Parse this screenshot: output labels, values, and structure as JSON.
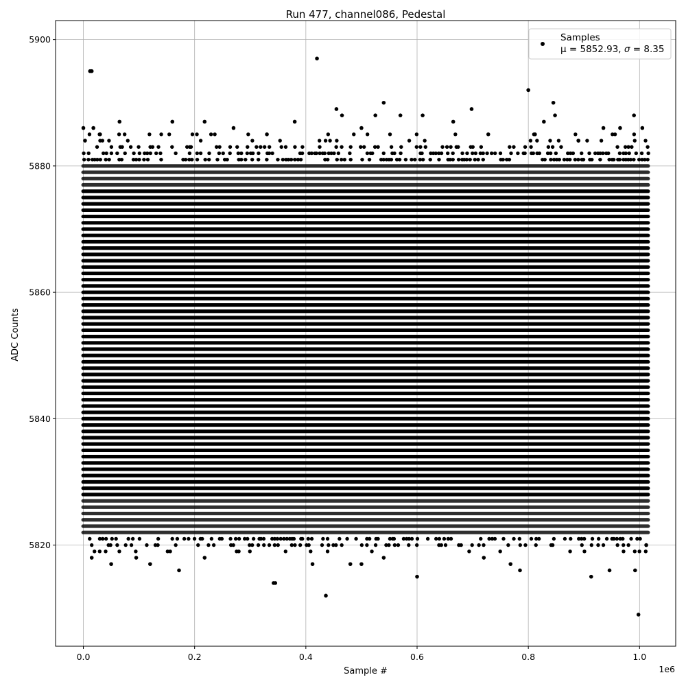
{
  "chart_data": {
    "type": "scatter",
    "title": "Run 477, channel086, Pedestal",
    "xlabel": "Sample #",
    "ylabel": "ADC Counts",
    "x_offset_label": "1e6",
    "xlim": [
      -50000,
      1065000
    ],
    "ylim": [
      5804,
      5903
    ],
    "x_ticks": [
      0,
      200000,
      400000,
      600000,
      800000,
      1000000
    ],
    "x_tick_labels": [
      "0.0",
      "0.2",
      "0.4",
      "0.6",
      "0.8",
      "1.0"
    ],
    "y_ticks": [
      5820,
      5840,
      5860,
      5880,
      5900
    ],
    "y_tick_labels": [
      "5820",
      "5840",
      "5860",
      "5880",
      "5900"
    ],
    "grid": true,
    "legend": {
      "placement": "top-right",
      "label": "Samples",
      "stats_prefix": "μ = 5852.93, ",
      "stats_suffix": " = 8.35",
      "sigma_symbol": "σ",
      "marker_color": "#000000"
    },
    "marker_color": "#000000",
    "dense_band": {
      "x_range": [
        0,
        1015000
      ],
      "y_range": [
        5822,
        5880
      ],
      "note_min_value": 5822
    },
    "series": [
      {
        "name": "Samples",
        "mean": 5852.93,
        "sigma": 8.35,
        "x": [
          0,
          3000,
          12000,
          15000,
          18000,
          30000,
          65000,
          160000,
          218000,
          270000,
          330000,
          380000,
          420000,
          455000,
          465000,
          500000,
          525000,
          540000,
          570000,
          610000,
          665000,
          698000,
          728000,
          800000,
          812000,
          828000,
          845000,
          848000,
          890000,
          935000,
          965000,
          990000,
          1005000,
          15000,
          50000,
          95000,
          120000,
          172000,
          218000,
          342000,
          345000,
          436000,
          412000,
          480000,
          500000,
          540000,
          600000,
          720000,
          768000,
          785000,
          913000,
          946000,
          992000,
          998000,
          1012000
        ],
        "y": [
          5886,
          5884,
          5895,
          5895,
          5886,
          5885,
          5887,
          5887,
          5887,
          5886,
          5885,
          5887,
          5897,
          5889,
          5888,
          5886,
          5888,
          5890,
          5888,
          5888,
          5887,
          5889,
          5885,
          5892,
          5885,
          5887,
          5890,
          5888,
          5884,
          5886,
          5886,
          5888,
          5886,
          5818,
          5817,
          5818,
          5817,
          5816,
          5818,
          5814,
          5814,
          5812,
          5817,
          5817,
          5817,
          5818,
          5815,
          5818,
          5817,
          5816,
          5815,
          5816,
          5816,
          5809,
          5820
        ]
      }
    ]
  }
}
